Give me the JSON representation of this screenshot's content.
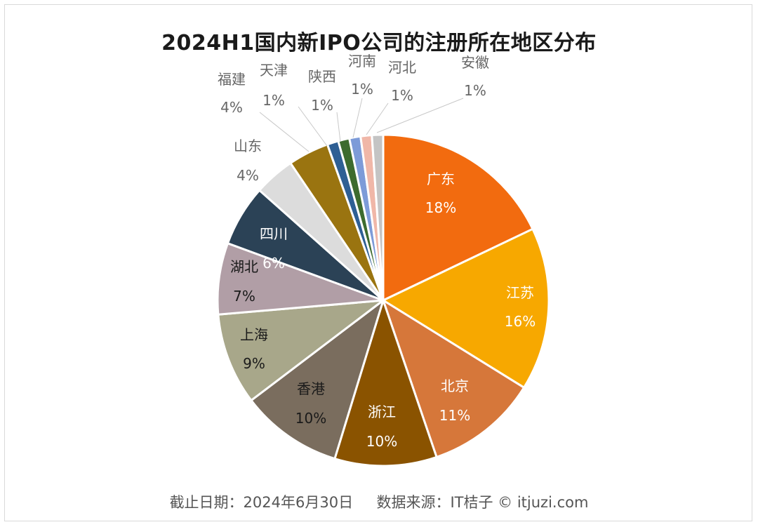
{
  "chart_data": {
    "type": "pie",
    "title": "2024H1国内新IPO公司的注册所在地区分布",
    "slices": [
      {
        "name": "广东",
        "pct_label": "18%",
        "value": 18,
        "color": "#f26b0f"
      },
      {
        "name": "江苏",
        "pct_label": "16%",
        "value": 16,
        "color": "#f7a800"
      },
      {
        "name": "北京",
        "pct_label": "11%",
        "value": 11,
        "color": "#d6773a"
      },
      {
        "name": "浙江",
        "pct_label": "10%",
        "value": 10,
        "color": "#8a5300"
      },
      {
        "name": "香港",
        "pct_label": "10%",
        "value": 10,
        "color": "#7a6d5e"
      },
      {
        "name": "上海",
        "pct_label": "9%",
        "value": 9,
        "color": "#a8a78a"
      },
      {
        "name": "湖北",
        "pct_label": "7%",
        "value": 7,
        "color": "#b19ea6"
      },
      {
        "name": "四川",
        "pct_label": "6%",
        "value": 6,
        "color": "#2b4256"
      },
      {
        "name": "山东",
        "pct_label": "4%",
        "value": 4,
        "color": "#dcdcdc"
      },
      {
        "name": "福建",
        "pct_label": "4%",
        "value": 4,
        "color": "#9a7410"
      },
      {
        "name": "天津",
        "pct_label": "1%",
        "value": 1.1,
        "color": "#2e5f94"
      },
      {
        "name": "陕西",
        "pct_label": "1%",
        "value": 1.1,
        "color": "#3d6b2e"
      },
      {
        "name": "河南",
        "pct_label": "1%",
        "value": 1.1,
        "color": "#7d9bd8"
      },
      {
        "name": "河北",
        "pct_label": "1%",
        "value": 1.1,
        "color": "#f0b7a8"
      },
      {
        "name": "安徽",
        "pct_label": "1%",
        "value": 1.1,
        "color": "#c4c4c4"
      }
    ]
  },
  "footer": {
    "text": "截止日期：2024年6月30日     数据来源：IT桔子 © itjuzi.com"
  }
}
